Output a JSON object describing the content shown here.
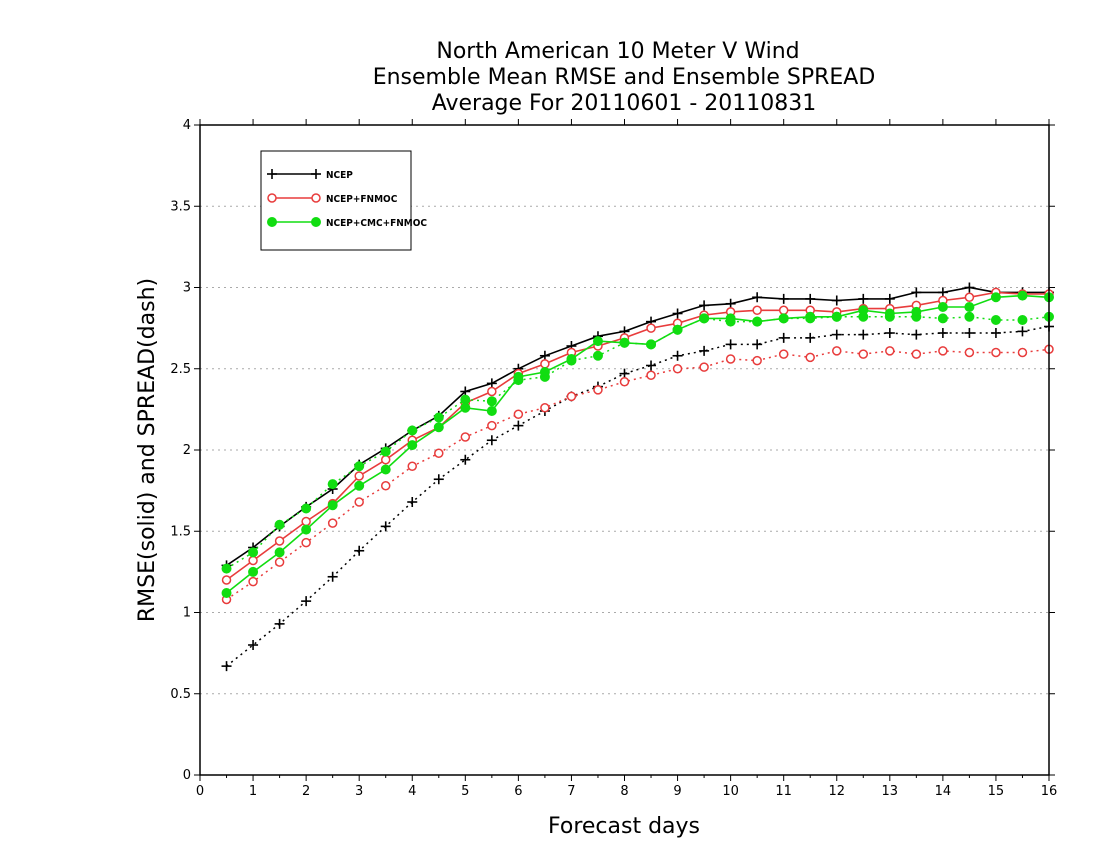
{
  "chart_data": {
    "type": "line",
    "title_lines": [
      "North American 10 Meter V Wind",
      "Ensemble Mean RMSE and Ensemble SPREAD",
      "Average For 20110601 - 20110831"
    ],
    "xlabel": "Forecast days",
    "ylabel": "RMSE(solid) and SPREAD(dash)",
    "xlim": [
      0,
      16
    ],
    "ylim": [
      0,
      4
    ],
    "x_ticks": [
      "0",
      "1",
      "2",
      "3",
      "4",
      "5",
      "6",
      "7",
      "8",
      "9",
      "10",
      "11",
      "12",
      "13",
      "14",
      "15",
      "16"
    ],
    "y_ticks": [
      "0",
      "0.5",
      "1",
      "1.5",
      "2",
      "2.5",
      "3",
      "3.5",
      "4"
    ],
    "grid": true,
    "legend_position": "top-left",
    "x": [
      0.5,
      1,
      1.5,
      2,
      2.5,
      3,
      3.5,
      4,
      4.5,
      5,
      5.5,
      6,
      6.5,
      7,
      7.5,
      8,
      8.5,
      9,
      9.5,
      10,
      10.5,
      11,
      11.5,
      12,
      12.5,
      13,
      13.5,
      14,
      14.5,
      15,
      15.5,
      16
    ],
    "series": [
      {
        "name": "NCEP",
        "color": "#000000",
        "marker": "plus",
        "rmse": [
          1.29,
          1.4,
          1.53,
          1.65,
          1.76,
          1.91,
          2.01,
          2.12,
          2.21,
          2.36,
          2.41,
          2.5,
          2.58,
          2.64,
          2.7,
          2.73,
          2.79,
          2.84,
          2.89,
          2.9,
          2.94,
          2.93,
          2.93,
          2.92,
          2.93,
          2.93,
          2.97,
          2.97,
          3.0,
          2.97,
          2.97,
          2.97
        ],
        "spread": [
          0.67,
          0.8,
          0.93,
          1.07,
          1.22,
          1.38,
          1.53,
          1.68,
          1.82,
          1.94,
          2.06,
          2.15,
          2.24,
          2.33,
          2.39,
          2.47,
          2.52,
          2.58,
          2.61,
          2.65,
          2.65,
          2.69,
          2.69,
          2.71,
          2.71,
          2.72,
          2.71,
          2.72,
          2.72,
          2.72,
          2.73,
          2.76
        ]
      },
      {
        "name": "NCEP+FNMOC",
        "color": "#e83c3c",
        "marker": "circle-open",
        "rmse": [
          1.2,
          1.32,
          1.44,
          1.56,
          1.67,
          1.84,
          1.94,
          2.06,
          2.14,
          2.29,
          2.36,
          2.47,
          2.53,
          2.6,
          2.64,
          2.69,
          2.75,
          2.78,
          2.83,
          2.85,
          2.86,
          2.86,
          2.86,
          2.85,
          2.87,
          2.87,
          2.89,
          2.92,
          2.94,
          2.97,
          2.96,
          2.96
        ],
        "spread": [
          1.08,
          1.19,
          1.31,
          1.43,
          1.55,
          1.68,
          1.78,
          1.9,
          1.98,
          2.08,
          2.15,
          2.22,
          2.26,
          2.33,
          2.37,
          2.42,
          2.46,
          2.5,
          2.51,
          2.56,
          2.55,
          2.59,
          2.57,
          2.61,
          2.59,
          2.61,
          2.59,
          2.61,
          2.6,
          2.6,
          2.6,
          2.62
        ]
      },
      {
        "name": "NCEP+CMC+FNMOC",
        "color": "#11dd11",
        "marker": "circle-filled",
        "rmse": [
          1.12,
          1.25,
          1.37,
          1.51,
          1.66,
          1.78,
          1.88,
          2.03,
          2.14,
          2.26,
          2.24,
          2.45,
          2.48,
          2.56,
          2.67,
          2.66,
          2.65,
          2.74,
          2.81,
          2.81,
          2.79,
          2.81,
          2.82,
          2.82,
          2.86,
          2.84,
          2.85,
          2.88,
          2.88,
          2.94,
          2.95,
          2.94
        ],
        "spread": [
          1.27,
          1.37,
          1.54,
          1.64,
          1.79,
          1.9,
          1.99,
          2.12,
          2.2,
          2.31,
          2.3,
          2.43,
          2.45,
          2.55,
          2.58,
          2.66,
          2.65,
          2.74,
          2.81,
          2.79,
          2.79,
          2.81,
          2.81,
          2.82,
          2.82,
          2.82,
          2.82,
          2.81,
          2.82,
          2.8,
          2.8,
          2.82
        ]
      }
    ]
  }
}
